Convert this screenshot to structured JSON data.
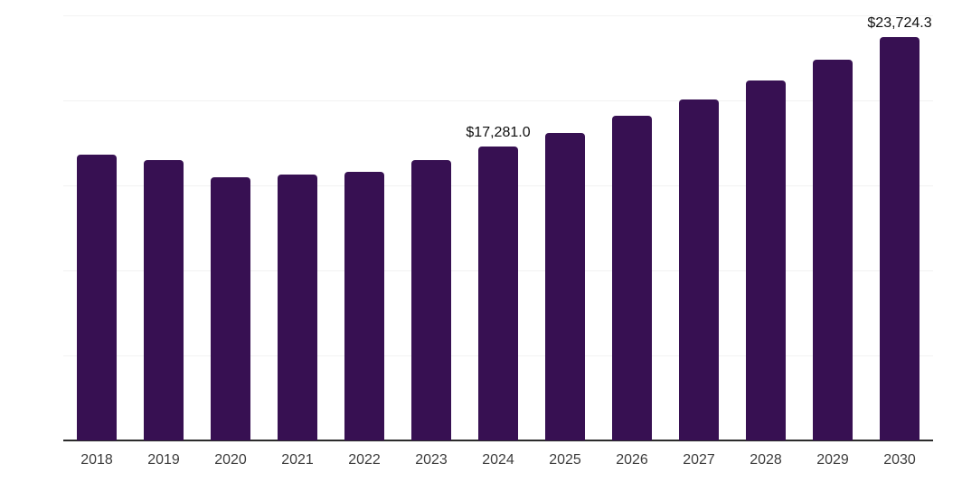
{
  "chart_data": {
    "type": "bar",
    "title": "",
    "xlabel": "",
    "ylabel": "",
    "categories": [
      "2018",
      "2019",
      "2020",
      "2021",
      "2022",
      "2023",
      "2024",
      "2025",
      "2026",
      "2027",
      "2028",
      "2029",
      "2030"
    ],
    "values": [
      16790,
      16510,
      15480,
      15620,
      15800,
      16470,
      17281.0,
      18060,
      19070,
      20080,
      21180,
      22400,
      23724.3
    ],
    "value_labels": [
      "",
      "",
      "",
      "",
      "",
      "",
      "$17,281.0",
      "",
      "",
      "",
      "",
      "",
      "$23,724.3"
    ],
    "ylim": [
      0,
      25000
    ],
    "yticks": [
      0,
      5000,
      10000,
      15000,
      20000,
      25000
    ],
    "y_tick_labels_visible": false,
    "grid": "horizontal",
    "legend": "none"
  },
  "style": {
    "bar_color": "#371052",
    "gridline_color": "#f2f2f2",
    "axis_line_color": "#2b2b2b",
    "tick_label_color": "#3d3d3d",
    "value_label_color": "#0f0f0f",
    "background_color": "#ffffff"
  }
}
